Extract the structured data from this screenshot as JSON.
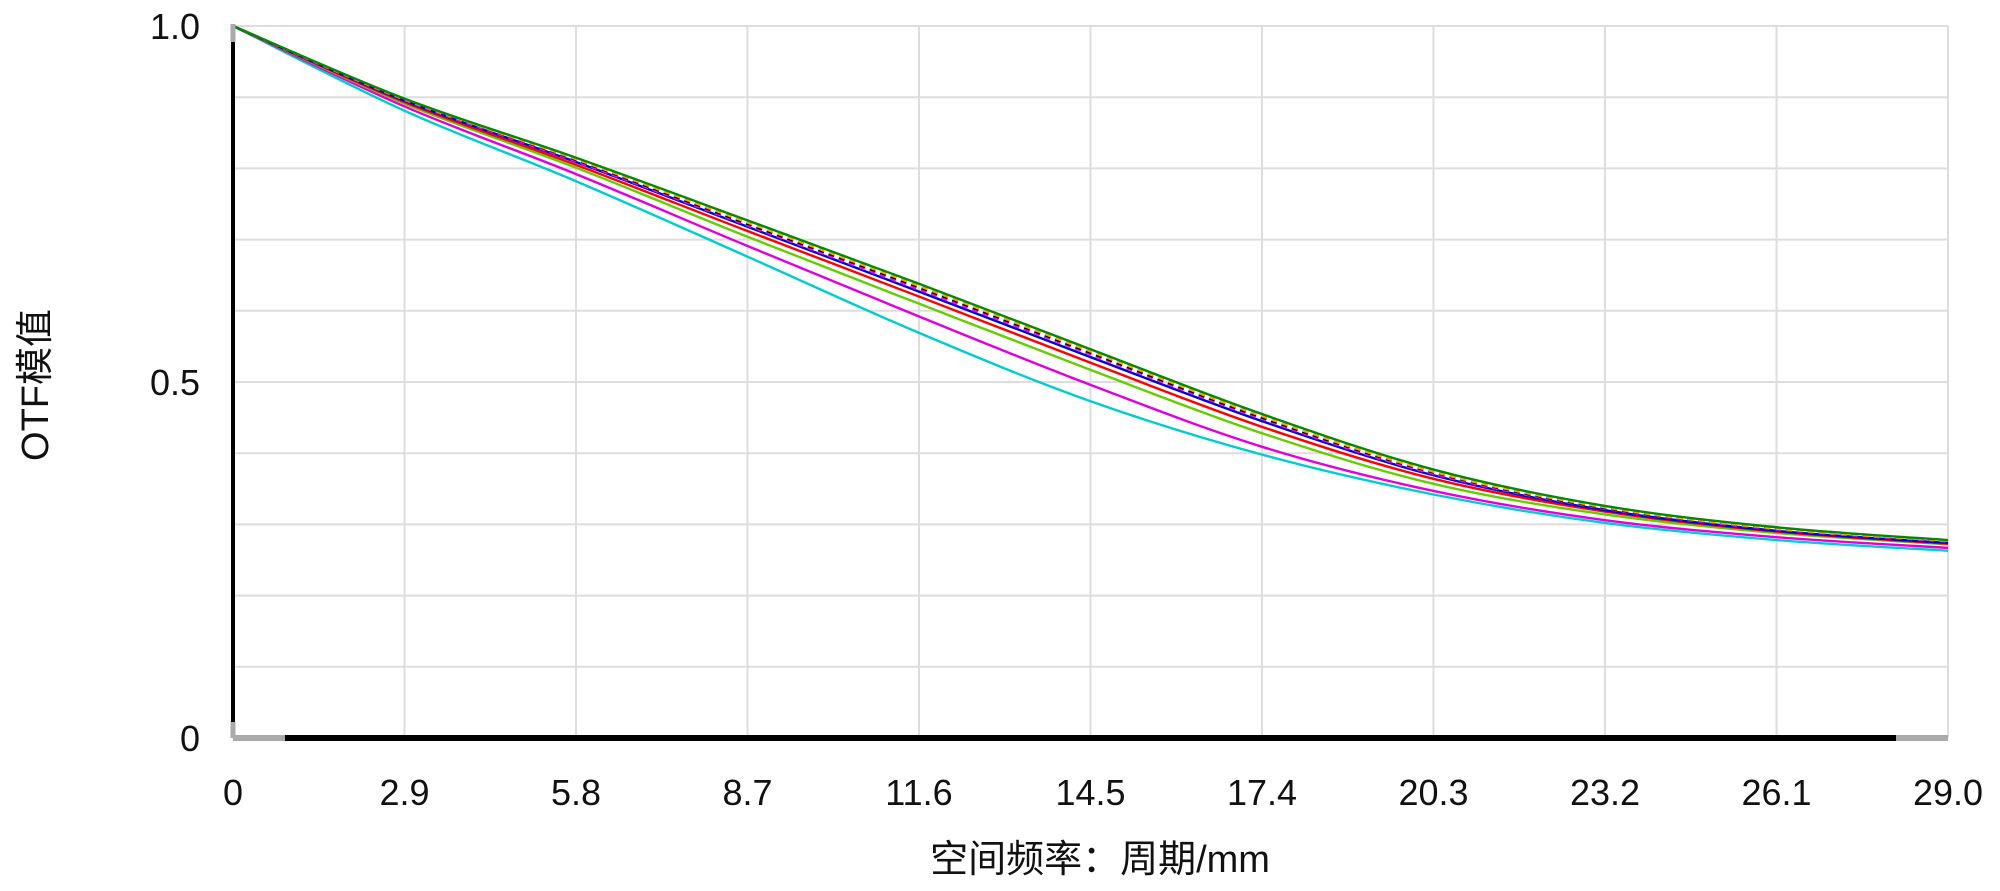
{
  "chart_data": {
    "type": "line",
    "title": "",
    "xlabel": "空间频率：周期/mm",
    "ylabel": "OTF模值",
    "xlim": [
      0,
      29.0
    ],
    "ylim": [
      0,
      1.0
    ],
    "x_ticks": [
      "0",
      "2.9",
      "5.8",
      "8.7",
      "11.6",
      "14.5",
      "17.4",
      "20.3",
      "23.2",
      "26.1",
      "29.0"
    ],
    "y_ticks": [
      {
        "value": 0,
        "label": "0"
      },
      {
        "value": 0.5,
        "label": "0.5"
      },
      {
        "value": 1.0,
        "label": "1.0"
      }
    ],
    "grid": true,
    "grid_y_values": [
      0.1,
      0.2,
      0.3,
      0.4,
      0.5,
      0.6,
      0.7,
      0.8,
      0.9
    ],
    "x": [
      0,
      2.9,
      5.8,
      8.7,
      11.6,
      14.5,
      17.4,
      20.3,
      23.2,
      26.1,
      29.0
    ],
    "series": [
      {
        "color": "#00cccc",
        "dash": "",
        "values": [
          1.0,
          0.881,
          0.782,
          0.676,
          0.569,
          0.473,
          0.398,
          0.342,
          0.302,
          0.278,
          0.263
        ]
      },
      {
        "color": "#dd00dd",
        "dash": "",
        "values": [
          1.0,
          0.887,
          0.792,
          0.691,
          0.592,
          0.496,
          0.409,
          0.347,
          0.306,
          0.282,
          0.267
        ]
      },
      {
        "color": "#66cc00",
        "dash": "",
        "values": [
          1.0,
          0.891,
          0.801,
          0.704,
          0.61,
          0.517,
          0.428,
          0.357,
          0.314,
          0.288,
          0.272
        ]
      },
      {
        "color": "#ff0000",
        "dash": "",
        "values": [
          1.0,
          0.893,
          0.805,
          0.712,
          0.62,
          0.527,
          0.437,
          0.364,
          0.318,
          0.29,
          0.273
        ]
      },
      {
        "color": "#0000cc",
        "dash": "",
        "values": [
          1.0,
          0.895,
          0.809,
          0.718,
          0.627,
          0.535,
          0.445,
          0.369,
          0.32,
          0.291,
          0.274
        ]
      },
      {
        "color": "#ff00ff",
        "dash": "6,5",
        "values": [
          1.0,
          0.896,
          0.81,
          0.72,
          0.63,
          0.539,
          0.448,
          0.371,
          0.322,
          0.293,
          0.276
        ]
      },
      {
        "color": "#000000",
        "dash": "6,5",
        "values": [
          1.0,
          0.897,
          0.812,
          0.722,
          0.633,
          0.541,
          0.45,
          0.373,
          0.323,
          0.294,
          0.277
        ]
      },
      {
        "color": "#ffa500",
        "dash": "6,5",
        "values": [
          1.0,
          0.897,
          0.813,
          0.724,
          0.635,
          0.543,
          0.452,
          0.374,
          0.324,
          0.294,
          0.277
        ]
      },
      {
        "color": "#008800",
        "dash": "",
        "values": [
          1.0,
          0.898,
          0.815,
          0.727,
          0.638,
          0.546,
          0.455,
          0.377,
          0.326,
          0.296,
          0.278
        ]
      }
    ]
  },
  "colors": {
    "grid": "#dddddd",
    "axis": "#000000",
    "axis_end": "#aaaaaa",
    "background": "#ffffff"
  }
}
